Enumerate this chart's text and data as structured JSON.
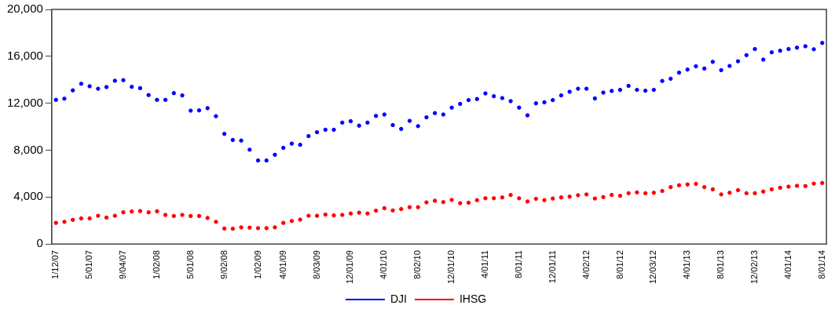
{
  "chart_data": {
    "type": "scatter",
    "categories": [
      "1/12/07",
      null,
      null,
      null,
      "5/01/07",
      null,
      null,
      null,
      "9/04/07",
      null,
      null,
      null,
      "1/02/08",
      null,
      null,
      null,
      "5/01/08",
      null,
      null,
      null,
      "9/02/08",
      null,
      null,
      null,
      "1/02/09",
      null,
      null,
      "4/01/09",
      null,
      null,
      null,
      "8/03/09",
      null,
      null,
      null,
      "12/01/09",
      null,
      null,
      null,
      "4/01/10",
      null,
      null,
      null,
      "8/02/10",
      null,
      null,
      null,
      "12/01/10",
      null,
      null,
      null,
      "4/01/11",
      null,
      null,
      null,
      "8/01/11",
      null,
      null,
      null,
      "12/01/11",
      null,
      null,
      null,
      "4/02/12",
      null,
      null,
      null,
      "8/01/12",
      null,
      null,
      null,
      "12/03/12",
      null,
      null,
      null,
      "4/01/13",
      null,
      null,
      null,
      "8/01/13",
      null,
      null,
      null,
      "12/02/13",
      null,
      null,
      null,
      "4/01/14",
      null,
      null,
      null,
      "8/01/14"
    ],
    "series": [
      {
        "name": "DJI",
        "color": "#0000ff",
        "values": [
          12290,
          12390,
          13100,
          13660,
          13450,
          13240,
          13380,
          13920,
          13970,
          13400,
          13290,
          12700,
          12290,
          12290,
          12860,
          12670,
          11370,
          11390,
          11580,
          10900,
          9390,
          8870,
          8820,
          8040,
          7120,
          7120,
          7610,
          8200,
          8560,
          8460,
          9200,
          9530,
          9740,
          9740,
          10350,
          10470,
          10090,
          10350,
          10920,
          11040,
          10140,
          9810,
          10500,
          10050,
          10800,
          11160,
          11040,
          11630,
          11940,
          12270,
          12360,
          12840,
          12600,
          12440,
          12180,
          11630,
          10970,
          11990,
          12080,
          12270,
          12670,
          12980,
          13240,
          13240,
          12410,
          12910,
          13050,
          13140,
          13480,
          13140,
          13070,
          13140,
          13900,
          14090,
          14610,
          14870,
          15150,
          14960,
          15530,
          14820,
          15180,
          15580,
          16100,
          16620,
          15720,
          16340,
          16480,
          16620,
          16740,
          16860,
          16600,
          17140
        ]
      },
      {
        "name": "IHSG",
        "color": "#ff0000",
        "values": [
          1800,
          1890,
          2060,
          2180,
          2180,
          2410,
          2250,
          2410,
          2700,
          2770,
          2810,
          2700,
          2790,
          2480,
          2390,
          2480,
          2390,
          2390,
          2220,
          1890,
          1320,
          1300,
          1420,
          1400,
          1350,
          1350,
          1420,
          1800,
          1960,
          2080,
          2410,
          2410,
          2510,
          2440,
          2480,
          2600,
          2670,
          2600,
          2840,
          3050,
          2860,
          2980,
          3140,
          3140,
          3550,
          3690,
          3570,
          3760,
          3480,
          3520,
          3740,
          3900,
          3900,
          3970,
          4180,
          3900,
          3620,
          3850,
          3740,
          3880,
          3970,
          4040,
          4160,
          4230,
          3880,
          4000,
          4180,
          4110,
          4330,
          4400,
          4330,
          4370,
          4520,
          4850,
          5010,
          5080,
          5130,
          4850,
          4660,
          4230,
          4370,
          4590,
          4330,
          4330,
          4470,
          4660,
          4800,
          4890,
          4960,
          4940,
          5150,
          5200
        ]
      }
    ],
    "ylim": [
      0,
      20000
    ],
    "yticks": [
      {
        "value": 0,
        "label": "0"
      },
      {
        "value": 4000,
        "label": "4,000"
      },
      {
        "value": 8000,
        "label": "8,000"
      },
      {
        "value": 12000,
        "label": "12,000"
      },
      {
        "value": 16000,
        "label": "16,000"
      },
      {
        "value": 20000,
        "label": "20,000"
      }
    ],
    "marker": "circle",
    "legend": "bottom",
    "grid": false
  }
}
